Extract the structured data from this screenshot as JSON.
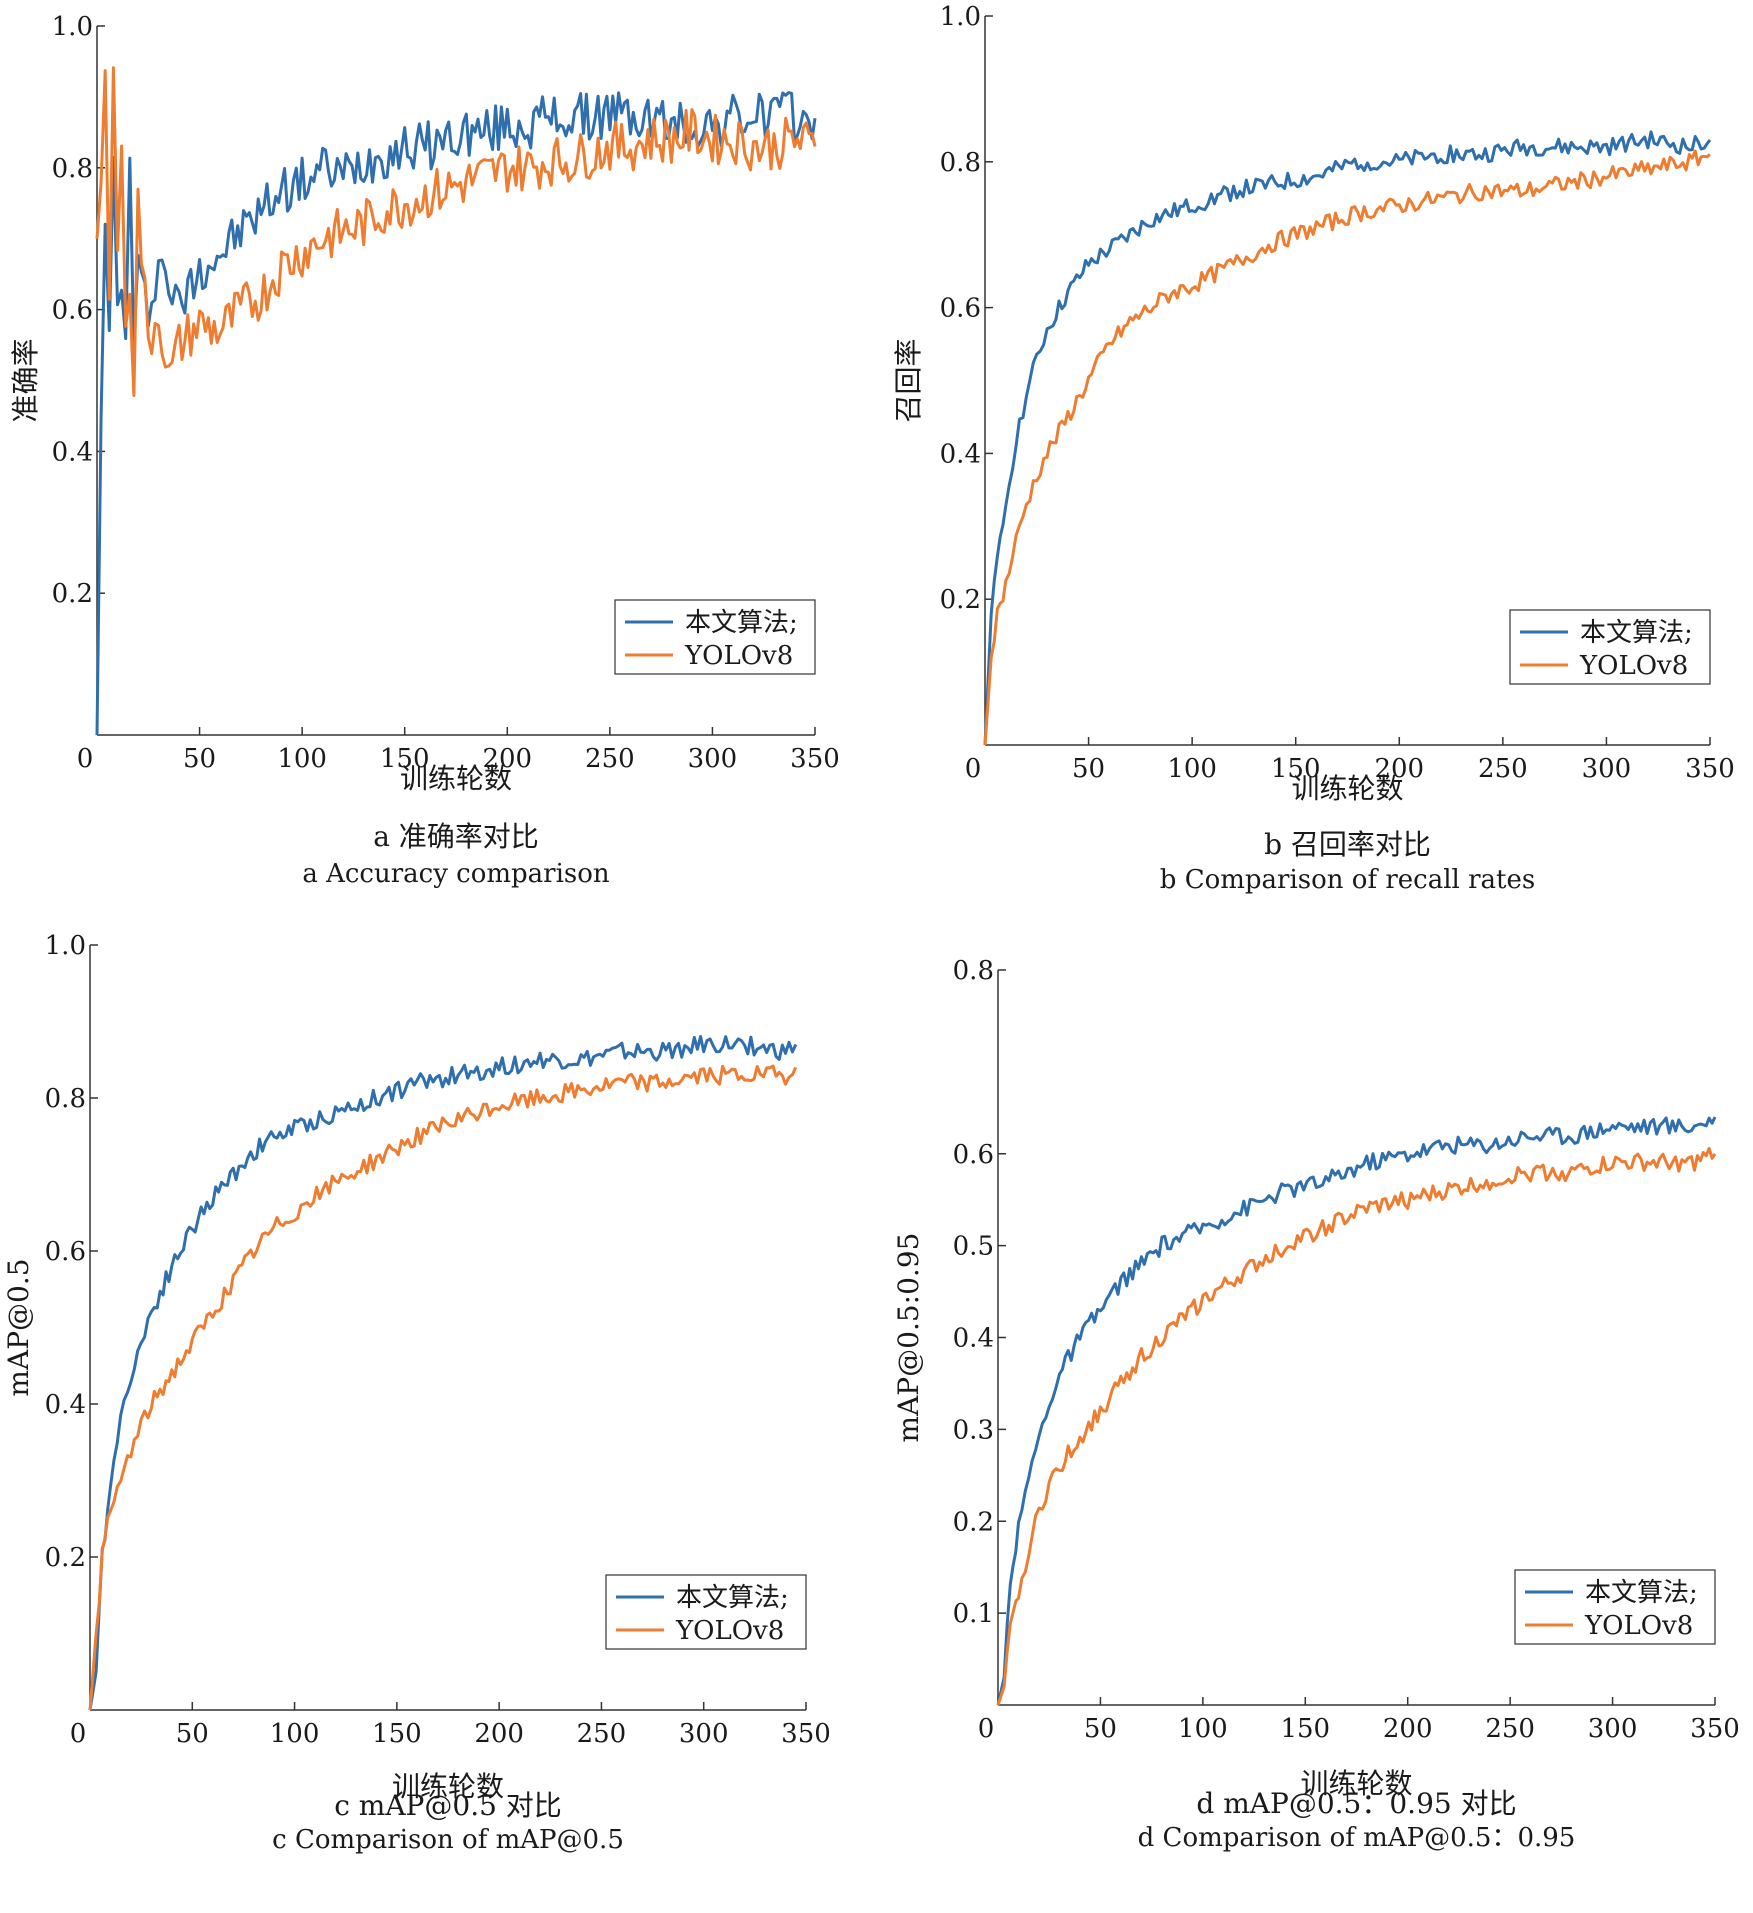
{
  "figure": {
    "colors": {
      "ours": "#2f6fae",
      "yolo": "#ee7d31",
      "axis": "#333333",
      "text": "#1a1a1a"
    }
  },
  "chart_data": [
    {
      "id": "a",
      "type": "line",
      "ylabel": "准确率",
      "xlabel": "训练轮数",
      "xlim": [
        0,
        350
      ],
      "ylim": [
        0,
        1.0
      ],
      "xticks": [
        "0",
        "50",
        "100",
        "150",
        "200",
        "250",
        "300",
        "350"
      ],
      "yticks": [
        "0.2",
        "0.4",
        "0.6",
        "0.8",
        "1.0"
      ],
      "caption_cn": "a  准确率对比",
      "caption_en": "a  Accuracy comparison",
      "legend": [
        "本文算法;",
        "YOLOv8"
      ],
      "legend_position": "bottom-right",
      "series": [
        {
          "name": "本文算法;",
          "x": [
            0,
            2,
            4,
            6,
            8,
            10,
            12,
            14,
            16,
            18,
            20,
            25,
            30,
            35,
            40,
            50,
            60,
            70,
            80,
            90,
            100,
            110,
            120,
            130,
            140,
            150,
            160,
            170,
            180,
            190,
            200,
            210,
            220,
            230,
            240,
            250,
            260,
            270,
            280,
            290,
            300,
            310,
            320,
            330,
            340,
            350
          ],
          "y": [
            0,
            0.45,
            0.75,
            0.55,
            0.8,
            0.6,
            0.62,
            0.58,
            0.8,
            0.55,
            0.65,
            0.6,
            0.67,
            0.64,
            0.6,
            0.66,
            0.68,
            0.71,
            0.74,
            0.77,
            0.78,
            0.8,
            0.79,
            0.81,
            0.82,
            0.83,
            0.83,
            0.84,
            0.85,
            0.85,
            0.86,
            0.86,
            0.87,
            0.87,
            0.87,
            0.88,
            0.87,
            0.87,
            0.86,
            0.86,
            0.86,
            0.87,
            0.87,
            0.88,
            0.87,
            0.87
          ]
        },
        {
          "name": "YOLOv8",
          "x": [
            0,
            2,
            4,
            6,
            8,
            10,
            12,
            14,
            16,
            18,
            20,
            25,
            30,
            35,
            40,
            50,
            60,
            70,
            80,
            90,
            100,
            110,
            120,
            130,
            140,
            150,
            160,
            170,
            180,
            190,
            200,
            210,
            220,
            230,
            240,
            250,
            260,
            270,
            280,
            290,
            300,
            310,
            320,
            330,
            340,
            350
          ],
          "y": [
            0.7,
            0.78,
            0.95,
            0.6,
            0.95,
            0.7,
            0.8,
            0.6,
            0.65,
            0.5,
            0.75,
            0.55,
            0.6,
            0.5,
            0.55,
            0.58,
            0.57,
            0.6,
            0.62,
            0.66,
            0.68,
            0.7,
            0.71,
            0.72,
            0.74,
            0.75,
            0.76,
            0.77,
            0.78,
            0.79,
            0.8,
            0.8,
            0.81,
            0.81,
            0.82,
            0.83,
            0.83,
            0.84,
            0.84,
            0.85,
            0.84,
            0.84,
            0.83,
            0.83,
            0.84,
            0.83
          ]
        }
      ]
    },
    {
      "id": "b",
      "type": "line",
      "ylabel": "召回率",
      "xlabel": "训练轮数",
      "xlim": [
        0,
        350
      ],
      "ylim": [
        0,
        1.0
      ],
      "xticks": [
        "0",
        "50",
        "100",
        "150",
        "200",
        "250",
        "300",
        "350"
      ],
      "yticks": [
        "0.2",
        "0.4",
        "0.6",
        "0.8",
        "1.0"
      ],
      "caption_cn": "b  召回率对比",
      "caption_en": "b  Comparison of recall rates",
      "legend": [
        "本文算法;",
        "YOLOv8"
      ],
      "legend_position": "bottom-right",
      "series": [
        {
          "name": "本文算法;",
          "x": [
            0,
            3,
            6,
            10,
            15,
            20,
            25,
            30,
            40,
            50,
            60,
            70,
            80,
            90,
            100,
            120,
            140,
            160,
            180,
            200,
            220,
            240,
            260,
            280,
            300,
            320,
            340,
            350
          ],
          "y": [
            0,
            0.18,
            0.25,
            0.33,
            0.42,
            0.48,
            0.53,
            0.57,
            0.62,
            0.66,
            0.68,
            0.7,
            0.72,
            0.73,
            0.74,
            0.76,
            0.77,
            0.78,
            0.8,
            0.8,
            0.81,
            0.81,
            0.82,
            0.82,
            0.82,
            0.83,
            0.82,
            0.83
          ]
        },
        {
          "name": "YOLOv8",
          "x": [
            0,
            3,
            6,
            10,
            15,
            20,
            25,
            30,
            40,
            50,
            60,
            70,
            80,
            90,
            100,
            120,
            140,
            160,
            180,
            200,
            220,
            240,
            260,
            280,
            300,
            320,
            340,
            350
          ],
          "y": [
            0,
            0.12,
            0.18,
            0.22,
            0.28,
            0.33,
            0.37,
            0.4,
            0.45,
            0.5,
            0.55,
            0.58,
            0.6,
            0.62,
            0.63,
            0.66,
            0.69,
            0.71,
            0.73,
            0.74,
            0.75,
            0.76,
            0.76,
            0.77,
            0.78,
            0.79,
            0.8,
            0.81
          ]
        }
      ]
    },
    {
      "id": "c",
      "type": "line",
      "ylabel": "mAP@0.5",
      "xlabel": "训练轮数",
      "xlim": [
        0,
        350
      ],
      "ylim": [
        0,
        1.0
      ],
      "xticks": [
        "0",
        "50",
        "100",
        "150",
        "200",
        "250",
        "300",
        "350"
      ],
      "yticks": [
        "0.2",
        "0.4",
        "0.6",
        "0.8",
        "1.0"
      ],
      "caption_cn": "c  mAP@0.5 对比",
      "caption_en": "c  Comparison of mAP@0.5",
      "legend": [
        "本文算法;",
        "YOLOv8"
      ],
      "legend_position": "bottom-right",
      "series": [
        {
          "name": "本文算法;",
          "x": [
            0,
            3,
            6,
            10,
            15,
            20,
            25,
            30,
            40,
            50,
            60,
            70,
            80,
            90,
            100,
            120,
            140,
            160,
            180,
            200,
            220,
            240,
            260,
            280,
            300,
            320,
            340,
            345
          ],
          "y": [
            0,
            0.05,
            0.2,
            0.3,
            0.38,
            0.44,
            0.48,
            0.52,
            0.58,
            0.63,
            0.67,
            0.7,
            0.73,
            0.75,
            0.76,
            0.78,
            0.8,
            0.82,
            0.83,
            0.84,
            0.85,
            0.85,
            0.86,
            0.86,
            0.87,
            0.87,
            0.86,
            0.87
          ]
        },
        {
          "name": "YOLOv8",
          "x": [
            0,
            3,
            6,
            10,
            15,
            20,
            25,
            30,
            40,
            50,
            60,
            70,
            80,
            90,
            100,
            120,
            140,
            160,
            180,
            200,
            220,
            240,
            260,
            280,
            300,
            320,
            340,
            345
          ],
          "y": [
            0,
            0.1,
            0.2,
            0.26,
            0.3,
            0.34,
            0.37,
            0.4,
            0.44,
            0.48,
            0.52,
            0.56,
            0.6,
            0.63,
            0.65,
            0.69,
            0.72,
            0.75,
            0.77,
            0.79,
            0.8,
            0.81,
            0.82,
            0.82,
            0.83,
            0.83,
            0.83,
            0.84
          ]
        }
      ]
    },
    {
      "id": "d",
      "type": "line",
      "ylabel": "mAP@0.5:0.95",
      "xlabel": "训练轮数",
      "xlim": [
        0,
        350
      ],
      "ylim": [
        0,
        0.8
      ],
      "xticks": [
        "0",
        "50",
        "100",
        "150",
        "200",
        "250",
        "300",
        "350"
      ],
      "yticks": [
        "0.1",
        "0.2",
        "0.3",
        "0.4",
        "0.5",
        "0.6",
        "0.8"
      ],
      "caption_cn": "d  mAP@0.5：0.95 对比",
      "caption_en": "d  Comparison of mAP@0.5：0.95",
      "legend": [
        "本文算法;",
        "YOLOv8"
      ],
      "legend_position": "bottom-right",
      "series": [
        {
          "name": "本文算法;",
          "x": [
            0,
            3,
            6,
            10,
            15,
            20,
            25,
            30,
            40,
            50,
            60,
            70,
            80,
            90,
            100,
            120,
            140,
            160,
            180,
            200,
            220,
            240,
            260,
            280,
            300,
            320,
            340,
            350
          ],
          "y": [
            0,
            0.03,
            0.14,
            0.19,
            0.25,
            0.29,
            0.33,
            0.36,
            0.4,
            0.43,
            0.46,
            0.48,
            0.5,
            0.51,
            0.52,
            0.54,
            0.56,
            0.57,
            0.59,
            0.6,
            0.61,
            0.61,
            0.62,
            0.62,
            0.63,
            0.63,
            0.63,
            0.64
          ]
        },
        {
          "name": "YOLOv8",
          "x": [
            0,
            3,
            6,
            10,
            15,
            20,
            25,
            30,
            40,
            50,
            60,
            70,
            80,
            90,
            100,
            120,
            140,
            160,
            180,
            200,
            220,
            240,
            260,
            280,
            300,
            320,
            340,
            350
          ],
          "y": [
            0,
            0.02,
            0.08,
            0.12,
            0.17,
            0.21,
            0.24,
            0.26,
            0.29,
            0.32,
            0.35,
            0.38,
            0.4,
            0.42,
            0.44,
            0.47,
            0.5,
            0.52,
            0.54,
            0.55,
            0.56,
            0.57,
            0.58,
            0.58,
            0.59,
            0.59,
            0.59,
            0.6
          ]
        }
      ]
    }
  ]
}
